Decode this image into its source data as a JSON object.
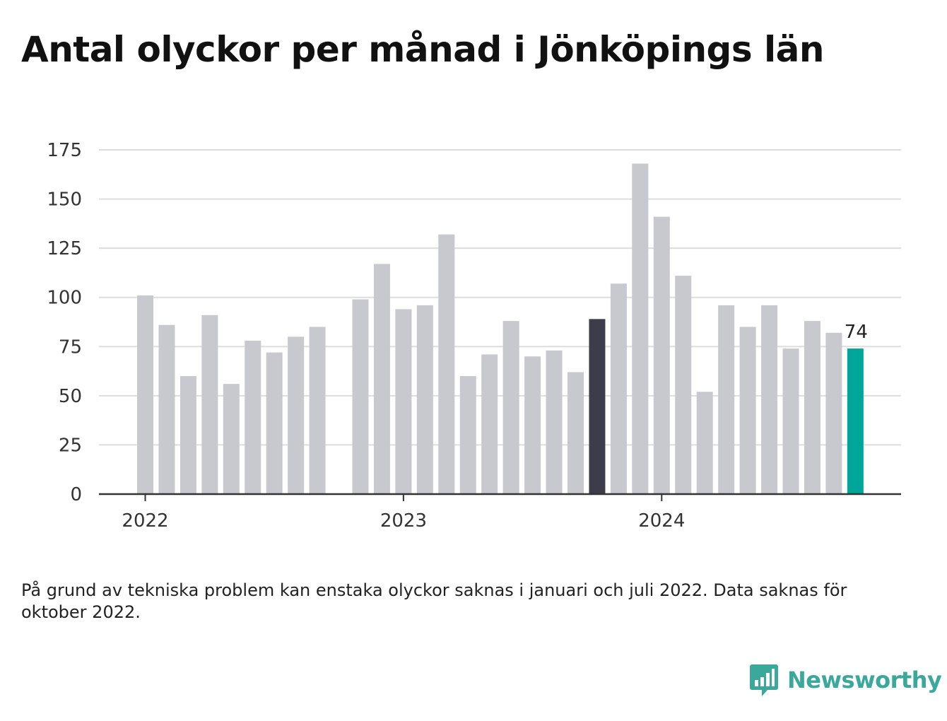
{
  "title": "Antal olyckor per månad i Jönköpings län",
  "note": "På grund av tekniska problem kan enstaka olyckor saknas i januari och juli 2022. Data saknas för oktober 2022.",
  "brand": {
    "name": "Newsworthy",
    "color": "#3aa89a"
  },
  "colors": {
    "default_bar": "#c8c8cf",
    "reference_bar": "#3d3c4a",
    "latest_bar": "#00a69a",
    "grid": "#dddddd",
    "axis": "#333333"
  },
  "chart_data": {
    "type": "bar",
    "ylim": [
      0,
      175
    ],
    "yticks": [
      0,
      25,
      50,
      75,
      100,
      125,
      150,
      175
    ],
    "grid": true,
    "xticks": [
      {
        "label": "2022",
        "month": "2022-01"
      },
      {
        "label": "2023",
        "month": "2023-01"
      },
      {
        "label": "2024",
        "month": "2024-01"
      }
    ],
    "months": [
      "2022-01",
      "2022-02",
      "2022-03",
      "2022-04",
      "2022-05",
      "2022-06",
      "2022-07",
      "2022-08",
      "2022-09",
      "2022-10",
      "2022-11",
      "2022-12",
      "2023-01",
      "2023-02",
      "2023-03",
      "2023-04",
      "2023-05",
      "2023-06",
      "2023-07",
      "2023-08",
      "2023-09",
      "2023-10",
      "2023-11",
      "2023-12",
      "2024-01",
      "2024-02",
      "2024-03",
      "2024-04",
      "2024-05",
      "2024-06",
      "2024-07",
      "2024-08",
      "2024-09",
      "2024-10"
    ],
    "values": [
      101,
      86,
      60,
      91,
      56,
      78,
      72,
      80,
      85,
      null,
      99,
      117,
      94,
      96,
      132,
      60,
      71,
      88,
      70,
      73,
      62,
      89,
      107,
      168,
      141,
      111,
      52,
      96,
      85,
      96,
      74,
      88,
      82,
      74
    ],
    "highlight": {
      "reference": "2023-10",
      "latest": "2024-10"
    },
    "value_labels": [
      {
        "month": "2024-10",
        "text": "74"
      }
    ]
  }
}
